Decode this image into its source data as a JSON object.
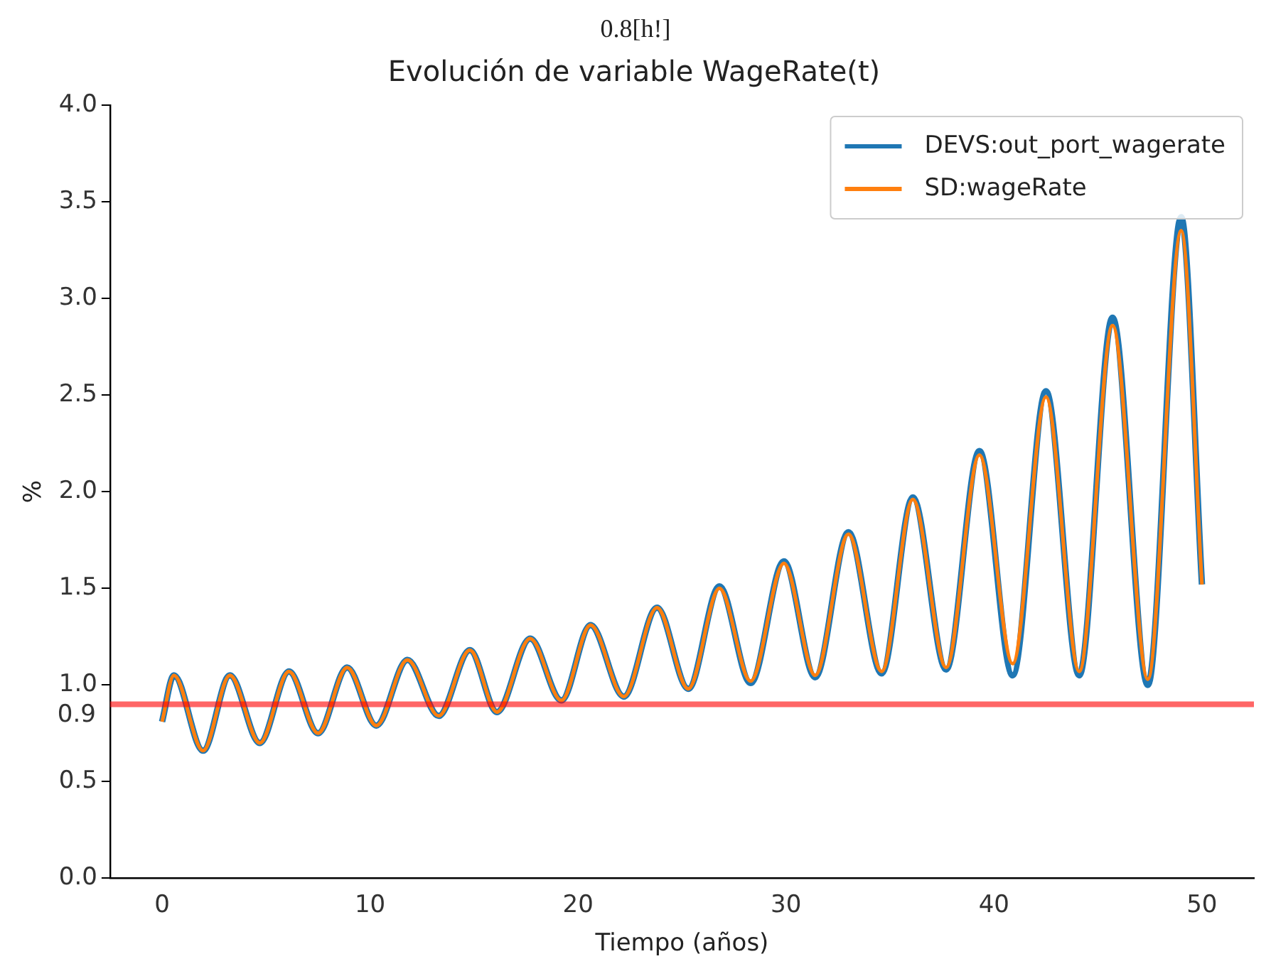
{
  "chart_data": {
    "type": "line",
    "title": "Evolución de variable WageRate(t)",
    "xlabel": "Tiempo (años)",
    "ylabel": "%",
    "annotations": [
      "0.8[h!]"
    ],
    "xlim": [
      -2.5,
      52.5
    ],
    "xticks": [
      0,
      10,
      20,
      30,
      40,
      50
    ],
    "ylim": [
      0,
      4
    ],
    "yticks": [
      {
        "value": 0,
        "label": "0.0"
      },
      {
        "value": 0.5,
        "label": "0.5"
      },
      {
        "value": 1,
        "label": "1.0"
      },
      {
        "value": 1.5,
        "label": "1.5"
      },
      {
        "value": 2,
        "label": "2.0"
      },
      {
        "value": 2.5,
        "label": "2.5"
      },
      {
        "value": 3,
        "label": "3.0"
      },
      {
        "value": 3.5,
        "label": "3.5"
      },
      {
        "value": 4,
        "label": "4.0"
      }
    ],
    "grid": false,
    "legend": "top right",
    "line_style": "solid",
    "marker": "none",
    "ref_lines": [
      {
        "axis": "y",
        "value": 0.9,
        "label": "0.9",
        "color": "#ff0000"
      }
    ],
    "series": [
      {
        "name": "DEVS:out_port_wagerate",
        "color": "#1f77b4",
        "x": [
          0,
          0.57,
          1.97,
          3.26,
          4.7,
          6.1,
          7.5,
          8.9,
          10.3,
          11.8,
          13.3,
          14.8,
          16.1,
          17.7,
          19.2,
          20.6,
          22.2,
          23.8,
          25.3,
          26.8,
          28.3,
          29.9,
          31.4,
          33.0,
          34.6,
          36.1,
          37.7,
          39.3,
          40.9,
          42.5,
          44.1,
          45.7,
          47.4,
          49.0,
          50
        ],
        "values": [
          0.81,
          1.05,
          0.66,
          1.05,
          0.7,
          1.07,
          0.75,
          1.09,
          0.79,
          1.13,
          0.84,
          1.18,
          0.86,
          1.24,
          0.92,
          1.31,
          0.94,
          1.4,
          0.98,
          1.51,
          1.01,
          1.64,
          1.04,
          1.79,
          1.06,
          1.97,
          1.08,
          2.21,
          1.05,
          2.52,
          1.05,
          2.9,
          1.0,
          3.42,
          1.52
        ]
      },
      {
        "name": "SD:wageRate",
        "color": "#ff7f0e",
        "x": [
          0,
          0.57,
          1.97,
          3.26,
          4.7,
          6.1,
          7.5,
          8.9,
          10.3,
          11.8,
          13.3,
          14.8,
          16.1,
          17.7,
          19.2,
          20.6,
          22.2,
          23.8,
          25.3,
          26.8,
          28.3,
          29.9,
          31.4,
          33.0,
          34.6,
          36.1,
          37.7,
          39.3,
          40.9,
          42.5,
          44.1,
          45.7,
          47.4,
          49.0,
          50
        ],
        "values": [
          0.81,
          1.05,
          0.66,
          1.05,
          0.7,
          1.07,
          0.75,
          1.09,
          0.79,
          1.13,
          0.84,
          1.18,
          0.86,
          1.24,
          0.92,
          1.31,
          0.94,
          1.4,
          0.98,
          1.5,
          1.02,
          1.63,
          1.05,
          1.78,
          1.07,
          1.96,
          1.09,
          2.19,
          1.11,
          2.49,
          1.07,
          2.86,
          1.03,
          3.35,
          1.52
        ]
      }
    ]
  }
}
